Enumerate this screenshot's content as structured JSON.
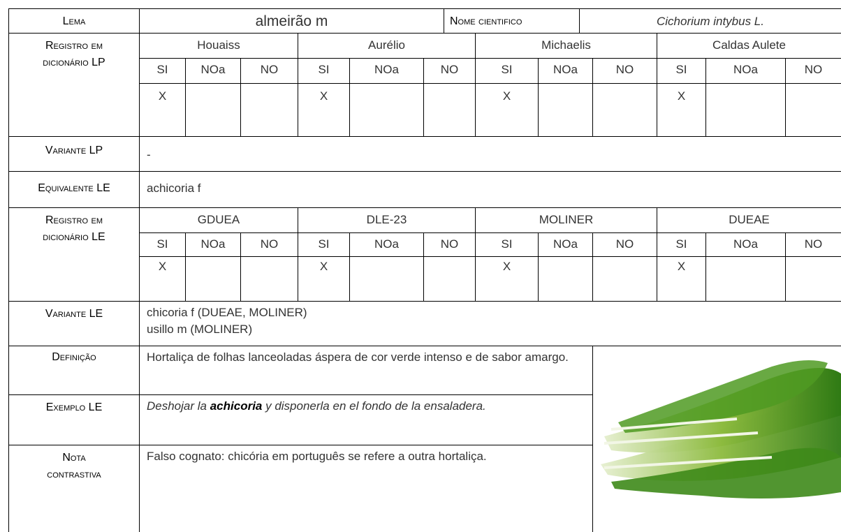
{
  "header": {
    "lema_label": "Lema",
    "lema": "almeirão m",
    "nome_label": "Nome cientifico",
    "nome": "Cichorium intybus L."
  },
  "registro_lp": {
    "label": [
      "Registro em",
      "dicionário LP"
    ],
    "dictionaries": [
      {
        "name": "Houaiss",
        "columns": [
          "SI",
          "NOa",
          "NO"
        ],
        "mark": "X"
      },
      {
        "name": "Aurélio",
        "columns": [
          "SI",
          "NOa",
          "NO"
        ],
        "mark": "X"
      },
      {
        "name": "Michaelis",
        "columns": [
          "SI",
          "NOa",
          "NO"
        ],
        "mark": "X"
      },
      {
        "name": "Caldas Aulete",
        "columns": [
          "SI",
          "NOa",
          "NO"
        ],
        "mark": "X"
      }
    ]
  },
  "variante_lp": {
    "label": "Variante LP",
    "value": "-"
  },
  "equivalente_le": {
    "label": "Equivalente LE",
    "value": "achicoria f"
  },
  "registro_le": {
    "label": [
      "Registro em",
      "dicionário LE"
    ],
    "dictionaries": [
      {
        "name": "GDUEA",
        "columns": [
          "SI",
          "NOa",
          "NO"
        ],
        "mark": "X"
      },
      {
        "name": "DLE-23",
        "columns": [
          "SI",
          "NOa",
          "NO"
        ],
        "mark": "X"
      },
      {
        "name": "MOLINER",
        "columns": [
          "SI",
          "NOa",
          "NO"
        ],
        "mark": "X"
      },
      {
        "name": "DUEAE",
        "columns": [
          "SI",
          "NOa",
          "NO"
        ],
        "mark": "X"
      }
    ]
  },
  "variante_le": {
    "label": "Variante LE",
    "lines": [
      "chicoria f (DUEAE, MOLINER)",
      "usillo m (MOLINER)"
    ]
  },
  "definicao": {
    "label": "Definição",
    "value": "Hortaliça de folhas lanceoladas áspera de cor verde intenso e de sabor amargo."
  },
  "exemplo_le": {
    "label": "Exemplo LE",
    "parts": [
      "Deshojar la ",
      "achicoria",
      " y disponerla en el fondo de la ensaladera."
    ]
  },
  "nota": {
    "label": [
      "Nota",
      "contrastiva"
    ],
    "value": "Falso cognato: chicória em português se refere a outra hortaliça."
  }
}
